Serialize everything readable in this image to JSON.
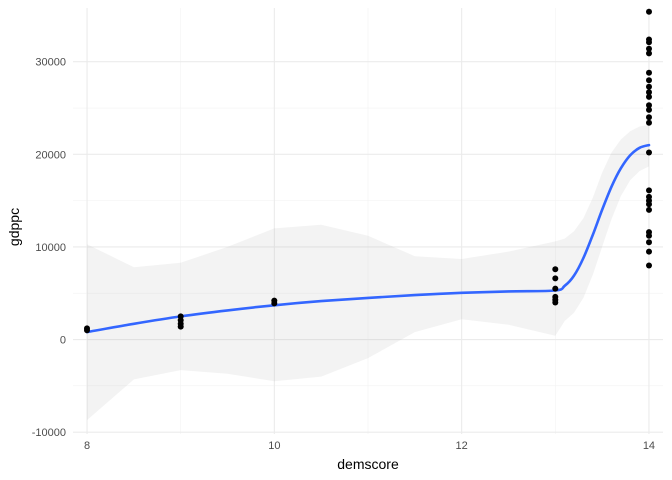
{
  "chart_data": {
    "type": "scatter",
    "title": "",
    "xlabel": "demscore",
    "ylabel": "gdppc",
    "xlim": [
      7.85,
      14.15
    ],
    "ylim": [
      -10200,
      35800
    ],
    "x_ticks": [
      8,
      10,
      12,
      14
    ],
    "x_tick_labels": [
      "8",
      "10",
      "12",
      "14"
    ],
    "y_ticks": [
      -10000,
      0,
      10000,
      20000,
      30000
    ],
    "y_tick_labels": [
      "-10000",
      "0",
      "10000",
      "20000",
      "30000"
    ],
    "grid": true,
    "points": [
      {
        "x": 8,
        "y": 1000
      },
      {
        "x": 8,
        "y": 1200
      },
      {
        "x": 9,
        "y": 1400
      },
      {
        "x": 9,
        "y": 1700
      },
      {
        "x": 9,
        "y": 2100
      },
      {
        "x": 9,
        "y": 2500
      },
      {
        "x": 10,
        "y": 3900
      },
      {
        "x": 10,
        "y": 4200
      },
      {
        "x": 13,
        "y": 4000
      },
      {
        "x": 13,
        "y": 4300
      },
      {
        "x": 13,
        "y": 4600
      },
      {
        "x": 13,
        "y": 5500
      },
      {
        "x": 13,
        "y": 6600
      },
      {
        "x": 13,
        "y": 7600
      },
      {
        "x": 14,
        "y": 8000
      },
      {
        "x": 14,
        "y": 9500
      },
      {
        "x": 14,
        "y": 10500
      },
      {
        "x": 14,
        "y": 11200
      },
      {
        "x": 14,
        "y": 11600
      },
      {
        "x": 14,
        "y": 14000
      },
      {
        "x": 14,
        "y": 14600
      },
      {
        "x": 14,
        "y": 15000
      },
      {
        "x": 14,
        "y": 15400
      },
      {
        "x": 14,
        "y": 16100
      },
      {
        "x": 14,
        "y": 20200
      },
      {
        "x": 14,
        "y": 23400
      },
      {
        "x": 14,
        "y": 24000
      },
      {
        "x": 14,
        "y": 24800
      },
      {
        "x": 14,
        "y": 25300
      },
      {
        "x": 14,
        "y": 26200
      },
      {
        "x": 14,
        "y": 26700
      },
      {
        "x": 14,
        "y": 27300
      },
      {
        "x": 14,
        "y": 28000
      },
      {
        "x": 14,
        "y": 28800
      },
      {
        "x": 14,
        "y": 30900
      },
      {
        "x": 14,
        "y": 31400
      },
      {
        "x": 14,
        "y": 32100
      },
      {
        "x": 14,
        "y": 32400
      },
      {
        "x": 14,
        "y": 35400
      }
    ],
    "smooth": {
      "method": "loess",
      "color": "#3366FF",
      "x": [
        8,
        8.5,
        9,
        9.5,
        10,
        10.5,
        11,
        11.5,
        12,
        12.5,
        13,
        13.1,
        13.2,
        13.3,
        13.4,
        13.5,
        13.6,
        13.7,
        13.8,
        13.9,
        14
      ],
      "y": [
        800,
        1700,
        2500,
        3150,
        3700,
        4150,
        4500,
        4800,
        5050,
        5200,
        5300,
        5800,
        6900,
        8800,
        11300,
        14000,
        16500,
        18500,
        19900,
        20700,
        21000
      ],
      "lower": [
        -8700,
        -4300,
        -3300,
        -3700,
        -4500,
        -4000,
        -2000,
        800,
        2200,
        1600,
        400,
        2000,
        2900,
        4500,
        7000,
        10000,
        13000,
        15500,
        17200,
        18200,
        18700
      ],
      "upper": [
        10300,
        7800,
        8300,
        10000,
        12000,
        12400,
        11200,
        9000,
        8700,
        9500,
        10600,
        10900,
        11700,
        13100,
        15300,
        18000,
        20200,
        21600,
        22500,
        23000,
        23200
      ]
    }
  }
}
